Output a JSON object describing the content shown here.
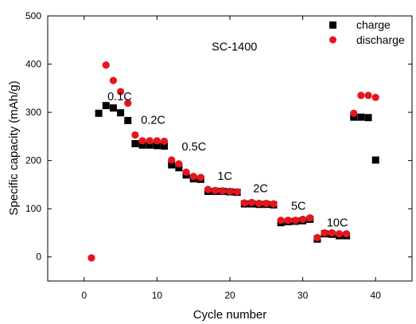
{
  "chart_data": {
    "type": "scatter",
    "title": "",
    "xlabel": "Cycle number",
    "ylabel": "Specific capacity (mAh/g)",
    "xlim": [
      -5,
      45
    ],
    "ylim": [
      -50,
      500
    ],
    "xticks": [
      0,
      10,
      20,
      30,
      40
    ],
    "yticks": [
      0,
      100,
      200,
      300,
      400,
      500
    ],
    "grid": false,
    "legend_position": "top-right",
    "series": [
      {
        "name": "charge",
        "marker": "square",
        "color": "#000000",
        "points": [
          [
            2,
            298
          ],
          [
            3,
            314
          ],
          [
            4,
            309
          ],
          [
            5,
            299
          ],
          [
            6,
            283
          ],
          [
            7,
            235
          ],
          [
            8,
            232
          ],
          [
            9,
            232
          ],
          [
            10,
            231
          ],
          [
            11,
            230
          ],
          [
            12,
            191
          ],
          [
            13,
            185
          ],
          [
            14,
            170
          ],
          [
            15,
            162
          ],
          [
            16,
            161
          ],
          [
            17,
            136
          ],
          [
            18,
            136
          ],
          [
            19,
            136
          ],
          [
            20,
            135
          ],
          [
            21,
            134
          ],
          [
            22,
            110
          ],
          [
            23,
            110
          ],
          [
            24,
            109
          ],
          [
            25,
            109
          ],
          [
            26,
            108
          ],
          [
            27,
            71
          ],
          [
            28,
            73
          ],
          [
            29,
            74
          ],
          [
            30,
            75
          ],
          [
            31,
            78
          ],
          [
            32,
            37
          ],
          [
            33,
            48
          ],
          [
            34,
            47
          ],
          [
            35,
            44
          ],
          [
            36,
            44
          ],
          [
            37,
            290
          ],
          [
            38,
            290
          ],
          [
            39,
            289
          ],
          [
            40,
            201
          ]
        ]
      },
      {
        "name": "discharge",
        "marker": "circle",
        "color": "#e8141c",
        "points": [
          [
            1,
            -2
          ],
          [
            3,
            398
          ],
          [
            4,
            366
          ],
          [
            5,
            343
          ],
          [
            6,
            319
          ],
          [
            7,
            253
          ],
          [
            8,
            241
          ],
          [
            9,
            241
          ],
          [
            10,
            241
          ],
          [
            11,
            240
          ],
          [
            12,
            201
          ],
          [
            13,
            193
          ],
          [
            14,
            176
          ],
          [
            15,
            167
          ],
          [
            16,
            165
          ],
          [
            17,
            140
          ],
          [
            18,
            138
          ],
          [
            19,
            137
          ],
          [
            20,
            136
          ],
          [
            21,
            135
          ],
          [
            22,
            112
          ],
          [
            23,
            113
          ],
          [
            24,
            111
          ],
          [
            25,
            111
          ],
          [
            26,
            110
          ],
          [
            27,
            76
          ],
          [
            28,
            76
          ],
          [
            29,
            76
          ],
          [
            30,
            78
          ],
          [
            31,
            81
          ],
          [
            32,
            40
          ],
          [
            33,
            50
          ],
          [
            34,
            50
          ],
          [
            35,
            48
          ],
          [
            36,
            48
          ],
          [
            37,
            298
          ],
          [
            38,
            335
          ],
          [
            39,
            335
          ],
          [
            40,
            331
          ]
        ]
      }
    ],
    "annotations": [
      {
        "text": "SC-1400",
        "x": 17.5,
        "y": 428
      },
      {
        "text": "0.1C",
        "x": 3.2,
        "y": 325
      },
      {
        "text": "0.2C",
        "x": 7.8,
        "y": 276
      },
      {
        "text": "0.5C",
        "x": 13.4,
        "y": 221
      },
      {
        "text": "1C",
        "x": 18.3,
        "y": 160
      },
      {
        "text": "2C",
        "x": 23.2,
        "y": 134
      },
      {
        "text": "5C",
        "x": 28.4,
        "y": 98
      },
      {
        "text": "10C",
        "x": 33.3,
        "y": 63
      }
    ]
  }
}
